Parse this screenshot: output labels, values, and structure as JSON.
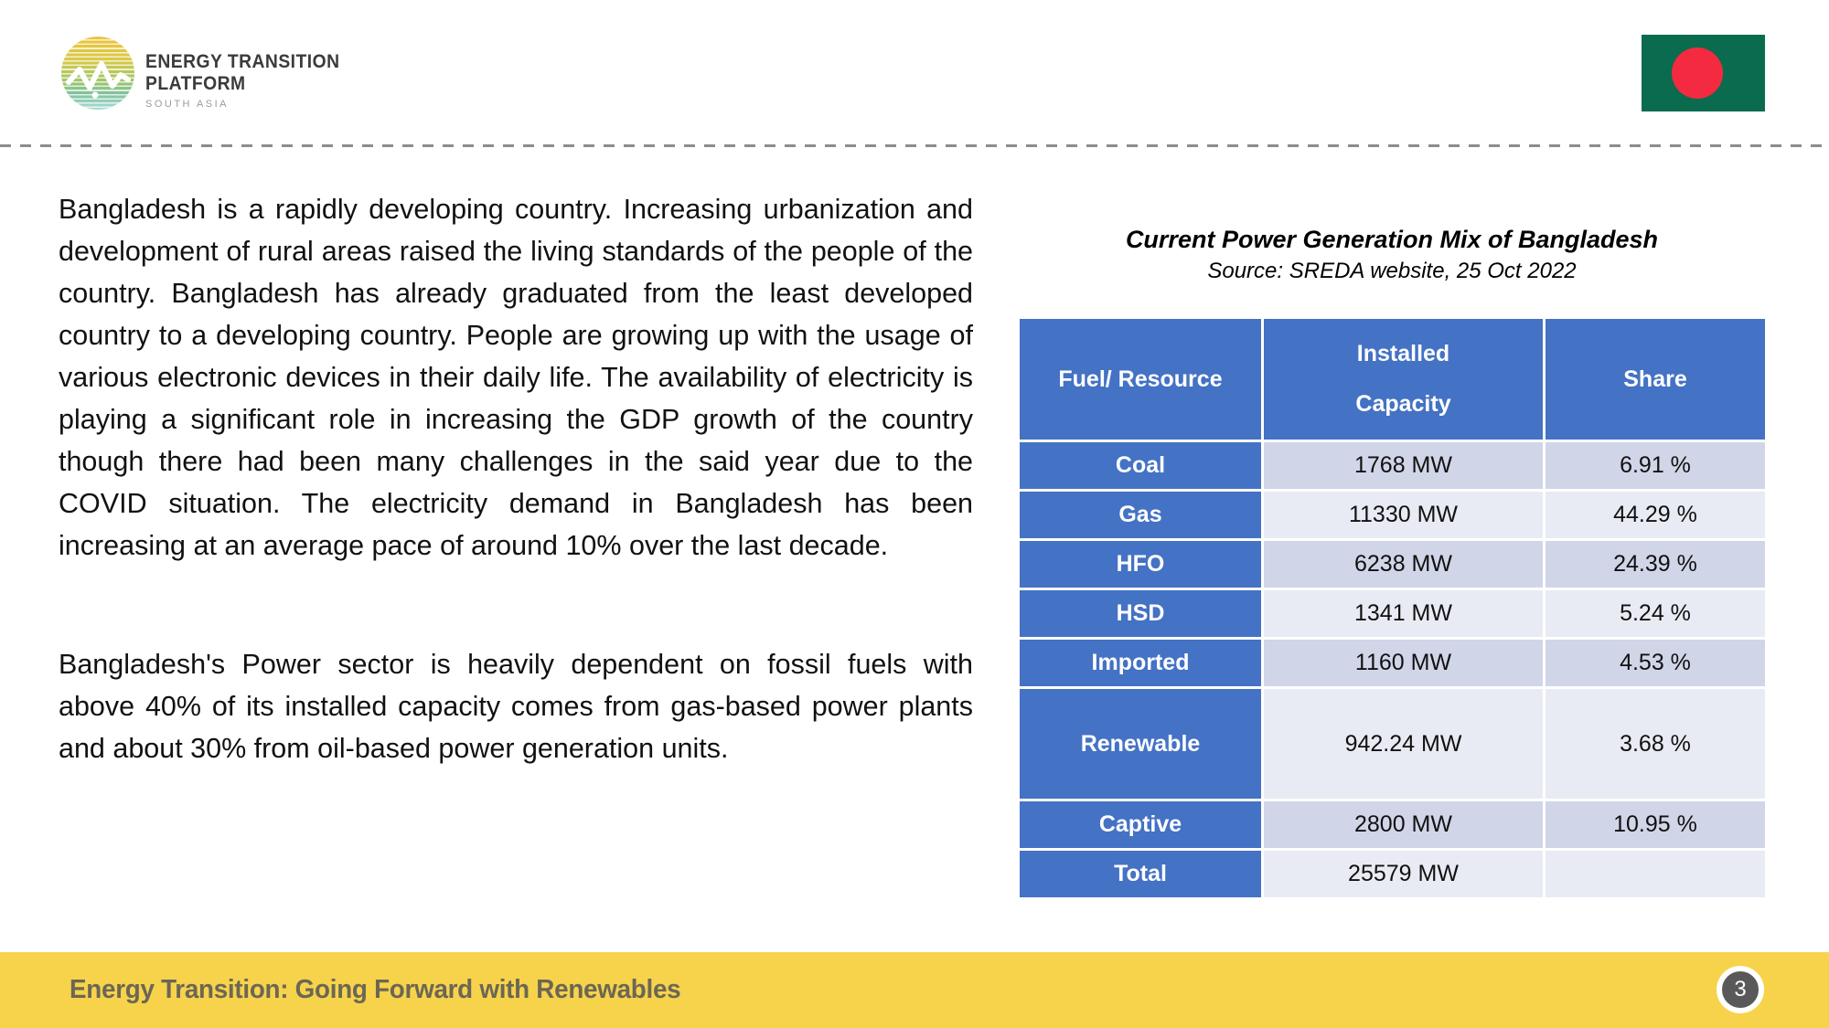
{
  "logo": {
    "line1": "ENERGY TRANSITION",
    "line2": "PLATFORM",
    "line3": "SOUTH ASIA"
  },
  "flag": {
    "country": "Bangladesh",
    "green": "#0B6B4E",
    "red": "#F42A41"
  },
  "body": {
    "paragraph1": "Bangladesh is a rapidly developing country. Increasing urbanization and development of rural areas raised the living standards of the people of the country. Bangladesh has already graduated from the least developed country to a developing country. People are growing up with the usage of various electronic devices in their daily life. The availability of electricity is playing a significant role in increasing the GDP growth of the country though there had been many challenges in the said year due to the COVID situation. The electricity demand in Bangladesh has been increasing at an average pace of around 10% over the last decade.",
    "paragraph2": "Bangladesh's Power sector is heavily dependent on fossil fuels with above 40% of its installed capacity comes from gas-based power plants and about 30% from oil-based power generation units."
  },
  "panel": {
    "title": "Current Power Generation Mix of Bangladesh",
    "source": "Source: SREDA website, 25 Oct 2022"
  },
  "table": {
    "headers": {
      "fuel": "Fuel/ Resource",
      "capacity": "Installed\nCapacity",
      "share": "Share"
    },
    "rows": [
      {
        "fuel": "Coal",
        "capacity": "1768 MW",
        "share": "6.91 %"
      },
      {
        "fuel": "Gas",
        "capacity": "11330 MW",
        "share": "44.29 %"
      },
      {
        "fuel": "HFO",
        "capacity": "6238 MW",
        "share": "24.39 %"
      },
      {
        "fuel": "HSD",
        "capacity": "1341 MW",
        "share": "5.24 %"
      },
      {
        "fuel": "Imported",
        "capacity": "1160 MW",
        "share": "4.53 %"
      },
      {
        "fuel": "Renewable",
        "capacity": "942.24 MW",
        "share": "3.68 %"
      },
      {
        "fuel": "Captive",
        "capacity": "2800 MW",
        "share": "10.95 %"
      },
      {
        "fuel": "Total",
        "capacity": "25579 MW",
        "share": ""
      }
    ]
  },
  "footer": {
    "title": "Energy Transition: Going Forward with Renewables",
    "page_number": "3"
  },
  "colors": {
    "header_blue": "#4472C4",
    "row_lavender": "#D1D5E8",
    "row_light": "#E9EBF4",
    "footer_yellow": "#F7D24B",
    "footer_text": "#6B6754",
    "page_circle": "#595959",
    "divider_gray": "#8C8C8C"
  }
}
